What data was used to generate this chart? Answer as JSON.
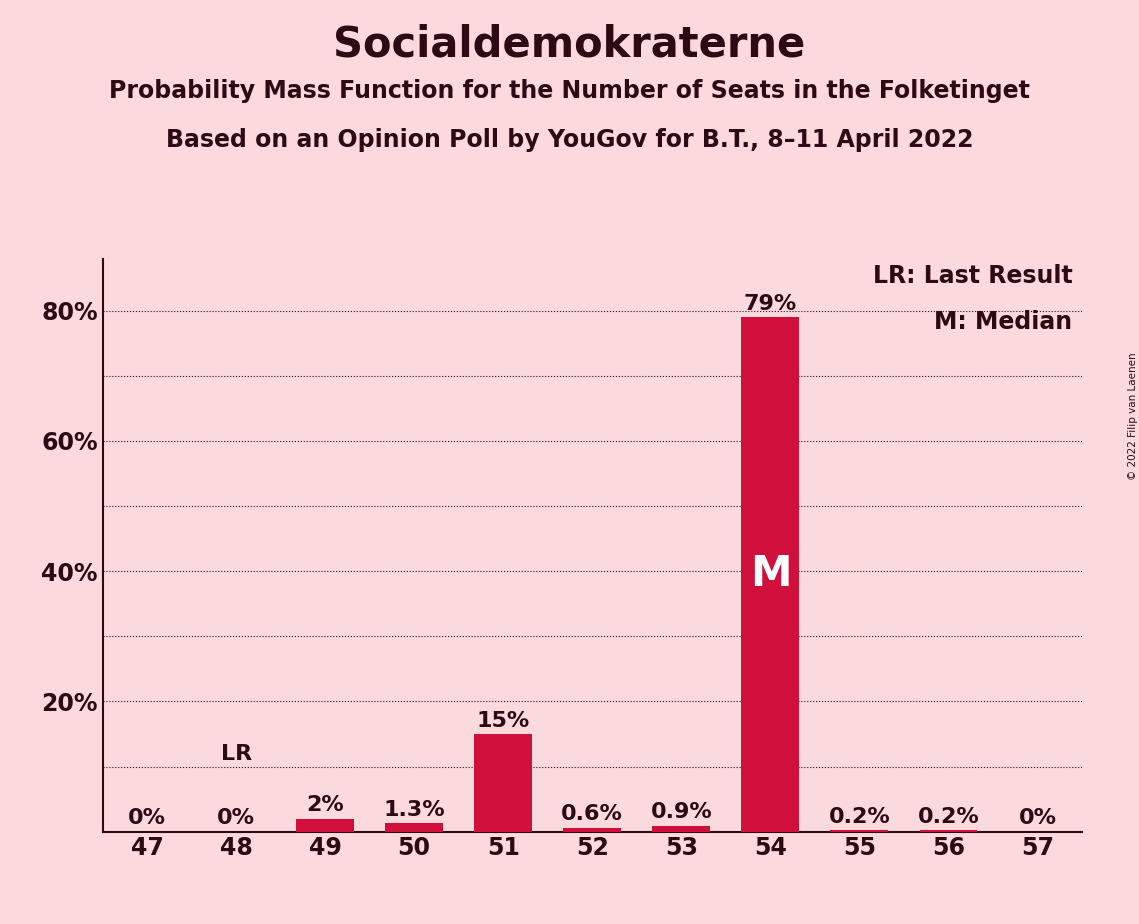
{
  "title": "Socialdemokraterne",
  "subtitle1": "Probability Mass Function for the Number of Seats in the Folketinget",
  "subtitle2": "Based on an Opinion Poll by YouGov for B.T., 8–11 April 2022",
  "copyright": "© 2022 Filip van Laenen",
  "categories": [
    47,
    48,
    49,
    50,
    51,
    52,
    53,
    54,
    55,
    56,
    57
  ],
  "values": [
    0.0,
    0.0,
    2.0,
    1.3,
    15.0,
    0.6,
    0.9,
    79.0,
    0.2,
    0.2,
    0.0
  ],
  "bar_labels": [
    "0%",
    "0%",
    "2%",
    "1.3%",
    "15%",
    "0.6%",
    "0.9%",
    "79%",
    "0.2%",
    "0.2%",
    "0%"
  ],
  "bar_color": "#D0103A",
  "background_color": "#FADADD",
  "text_color": "#2D0A14",
  "lr_seat": 48,
  "median_seat": 54,
  "ylim": [
    0,
    88
  ],
  "grid_ticks": [
    10,
    20,
    30,
    40,
    50,
    60,
    70,
    80
  ],
  "ytick_positions": [
    20,
    40,
    60,
    80
  ],
  "ytick_labels": [
    "20%",
    "40%",
    "60%",
    "80%"
  ],
  "legend_lr": "LR: Last Result",
  "legend_m": "M: Median",
  "title_fontsize": 30,
  "subtitle_fontsize": 17,
  "bar_label_fontsize": 16,
  "axis_tick_fontsize": 17,
  "legend_fontsize": 17,
  "lr_value": 10.0,
  "median_label_fontsize": 30
}
